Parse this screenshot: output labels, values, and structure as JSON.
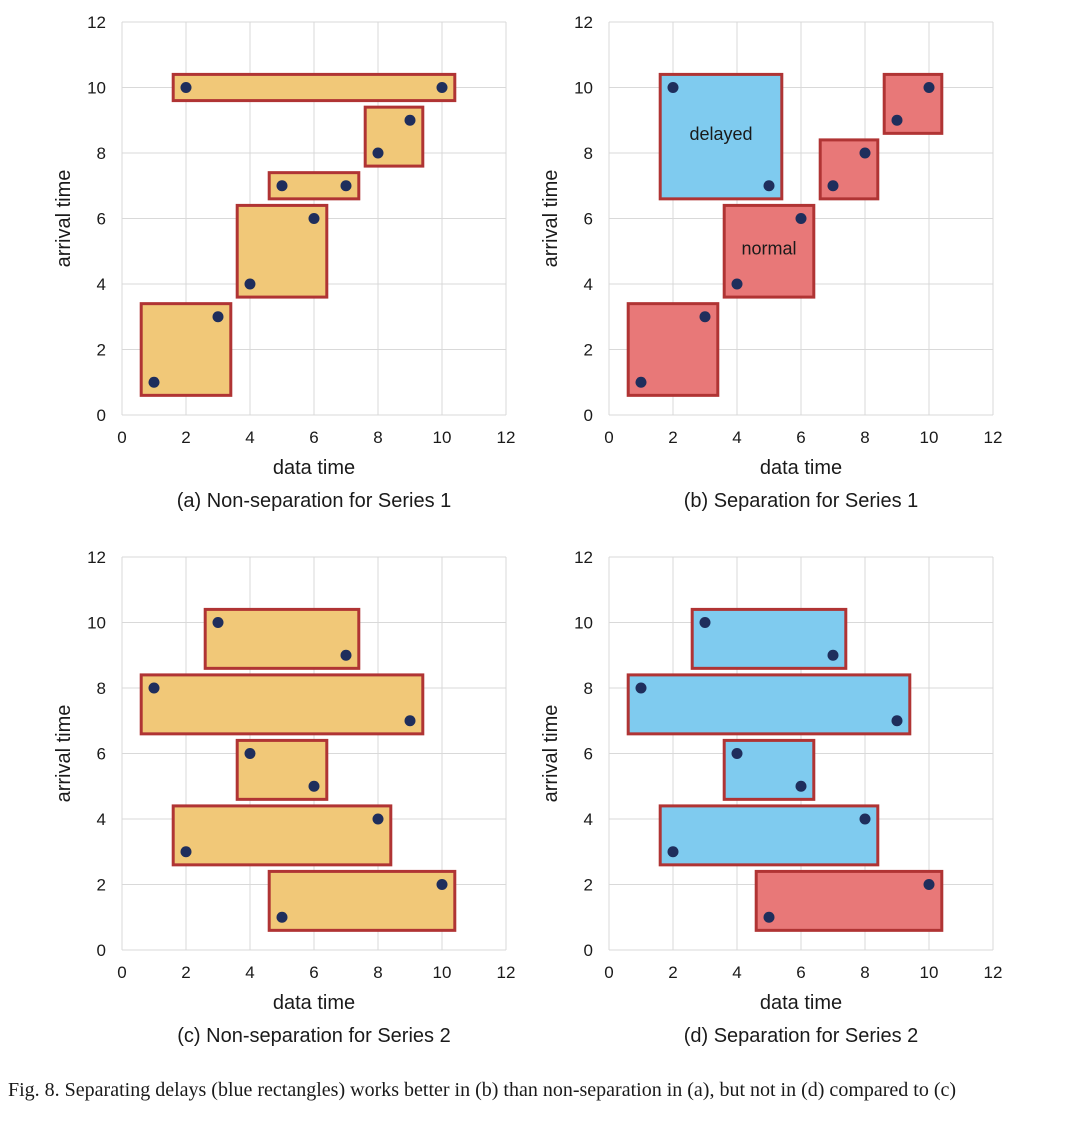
{
  "figure": {
    "caption": "Fig. 8. Separating delays (blue rectangles) works better in (b) than non-separation in (a), but not in (d) compared to (c)",
    "colors": {
      "normal_fill": "#e87878",
      "delayed_fill": "#7fcbef",
      "merged_fill": "#f1c878",
      "rect_border": "#b03434",
      "point": "#1f2e5c",
      "grid": "#d9d9d9"
    }
  },
  "chart_data": [
    {
      "type": "scatter",
      "title": "(a) Non-separation for Series 1",
      "xlabel": "data time",
      "ylabel": "arrival time",
      "xlim": [
        0,
        12
      ],
      "ylim": [
        0,
        12
      ],
      "xticks": [
        0,
        2,
        4,
        6,
        8,
        10,
        12
      ],
      "yticks": [
        0,
        2,
        4,
        6,
        8,
        10,
        12
      ],
      "grid": true,
      "points": [
        [
          1,
          1
        ],
        [
          3,
          3
        ],
        [
          4,
          4
        ],
        [
          6,
          6
        ],
        [
          5,
          7
        ],
        [
          7,
          7
        ],
        [
          8,
          8
        ],
        [
          9,
          9
        ],
        [
          2,
          10
        ],
        [
          10,
          10
        ]
      ],
      "rectangles": [
        {
          "x": [
            0.6,
            3.4
          ],
          "y": [
            0.6,
            3.4
          ],
          "kind": "merged"
        },
        {
          "x": [
            3.6,
            6.4
          ],
          "y": [
            3.6,
            6.4
          ],
          "kind": "merged"
        },
        {
          "x": [
            4.6,
            7.4
          ],
          "y": [
            6.6,
            7.4
          ],
          "kind": "merged"
        },
        {
          "x": [
            7.6,
            9.4
          ],
          "y": [
            7.6,
            9.4
          ],
          "kind": "merged"
        },
        {
          "x": [
            1.6,
            10.4
          ],
          "y": [
            9.6,
            10.4
          ],
          "kind": "merged"
        }
      ],
      "annotations": []
    },
    {
      "type": "scatter",
      "title": "(b) Separation for Series 1",
      "xlabel": "data time",
      "ylabel": "arrival time",
      "xlim": [
        0,
        12
      ],
      "ylim": [
        0,
        12
      ],
      "xticks": [
        0,
        2,
        4,
        6,
        8,
        10,
        12
      ],
      "yticks": [
        0,
        2,
        4,
        6,
        8,
        10,
        12
      ],
      "grid": true,
      "points": [
        [
          1,
          1
        ],
        [
          3,
          3
        ],
        [
          4,
          4
        ],
        [
          6,
          6
        ],
        [
          5,
          7
        ],
        [
          7,
          7
        ],
        [
          8,
          8
        ],
        [
          9,
          9
        ],
        [
          2,
          10
        ],
        [
          10,
          10
        ]
      ],
      "rectangles": [
        {
          "x": [
            0.6,
            3.4
          ],
          "y": [
            0.6,
            3.4
          ],
          "kind": "normal"
        },
        {
          "x": [
            3.6,
            6.4
          ],
          "y": [
            3.6,
            6.4
          ],
          "kind": "normal"
        },
        {
          "x": [
            1.6,
            5.4
          ],
          "y": [
            6.6,
            10.4
          ],
          "kind": "delayed"
        },
        {
          "x": [
            6.6,
            8.4
          ],
          "y": [
            6.6,
            8.4
          ],
          "kind": "normal"
        },
        {
          "x": [
            8.6,
            10.4
          ],
          "y": [
            8.6,
            10.4
          ],
          "kind": "normal"
        }
      ],
      "annotations": [
        {
          "text": "delayed",
          "x": 3.5,
          "y": 8.4
        },
        {
          "text": "normal",
          "x": 5,
          "y": 4.9
        }
      ]
    },
    {
      "type": "scatter",
      "title": "(c) Non-separation for Series 2",
      "xlabel": "data time",
      "ylabel": "arrival time",
      "xlim": [
        0,
        12
      ],
      "ylim": [
        0,
        12
      ],
      "xticks": [
        0,
        2,
        4,
        6,
        8,
        10,
        12
      ],
      "yticks": [
        0,
        2,
        4,
        6,
        8,
        10,
        12
      ],
      "grid": true,
      "points": [
        [
          5,
          1
        ],
        [
          10,
          2
        ],
        [
          2,
          3
        ],
        [
          8,
          4
        ],
        [
          6,
          5
        ],
        [
          4,
          6
        ],
        [
          9,
          7
        ],
        [
          1,
          8
        ],
        [
          7,
          9
        ],
        [
          3,
          10
        ]
      ],
      "rectangles": [
        {
          "x": [
            4.6,
            10.4
          ],
          "y": [
            0.6,
            2.4
          ],
          "kind": "merged"
        },
        {
          "x": [
            1.6,
            8.4
          ],
          "y": [
            2.6,
            4.4
          ],
          "kind": "merged"
        },
        {
          "x": [
            3.6,
            6.4
          ],
          "y": [
            4.6,
            6.4
          ],
          "kind": "merged"
        },
        {
          "x": [
            0.6,
            9.4
          ],
          "y": [
            6.6,
            8.4
          ],
          "kind": "merged"
        },
        {
          "x": [
            2.6,
            7.4
          ],
          "y": [
            8.6,
            10.4
          ],
          "kind": "merged"
        }
      ],
      "annotations": []
    },
    {
      "type": "scatter",
      "title": "(d) Separation for Series 2",
      "xlabel": "data time",
      "ylabel": "arrival time",
      "xlim": [
        0,
        12
      ],
      "ylim": [
        0,
        12
      ],
      "xticks": [
        0,
        2,
        4,
        6,
        8,
        10,
        12
      ],
      "yticks": [
        0,
        2,
        4,
        6,
        8,
        10,
        12
      ],
      "grid": true,
      "points": [
        [
          5,
          1
        ],
        [
          10,
          2
        ],
        [
          2,
          3
        ],
        [
          8,
          4
        ],
        [
          6,
          5
        ],
        [
          4,
          6
        ],
        [
          9,
          7
        ],
        [
          1,
          8
        ],
        [
          7,
          9
        ],
        [
          3,
          10
        ]
      ],
      "rectangles": [
        {
          "x": [
            4.6,
            10.4
          ],
          "y": [
            0.6,
            2.4
          ],
          "kind": "normal"
        },
        {
          "x": [
            1.6,
            8.4
          ],
          "y": [
            2.6,
            4.4
          ],
          "kind": "delayed"
        },
        {
          "x": [
            3.6,
            6.4
          ],
          "y": [
            4.6,
            6.4
          ],
          "kind": "delayed"
        },
        {
          "x": [
            0.6,
            9.4
          ],
          "y": [
            6.6,
            8.4
          ],
          "kind": "delayed"
        },
        {
          "x": [
            2.6,
            7.4
          ],
          "y": [
            8.6,
            10.4
          ],
          "kind": "delayed"
        }
      ],
      "annotations": []
    }
  ]
}
